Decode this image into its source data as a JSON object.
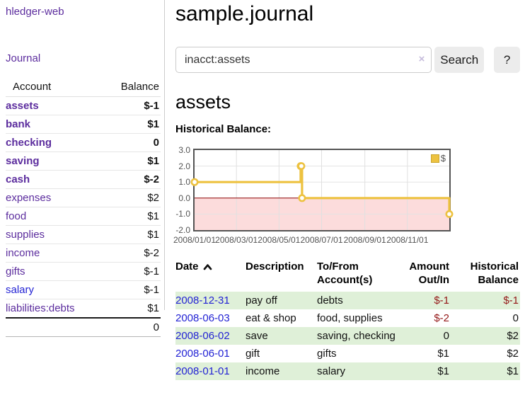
{
  "colors": {
    "link_purple": "#5c2d9e",
    "link_blue": "#2323d4",
    "negative_strong": "#941818",
    "negative_muted": "#c87c7c",
    "row_stripe_green": "#dff0d8",
    "chart_line_gold": "#edc240",
    "chart_border_gray": "#545454",
    "chart_negative_fill": "#fcdcdc",
    "chart_zero_line": "#8b0000"
  },
  "sidebar": {
    "brand": "hledger-web",
    "journal_link": "Journal",
    "accounts": {
      "headers": {
        "account": "Account",
        "balance": "Balance"
      },
      "rows": [
        {
          "account": "assets",
          "balance": "$-1",
          "indent": 1,
          "emph": true,
          "balance_class": "neg-strong",
          "link_variant": "purple"
        },
        {
          "account": "bank",
          "balance": "$1",
          "indent": 2,
          "emph": true,
          "balance_class": "",
          "link_variant": "purple"
        },
        {
          "account": "checking",
          "balance": "0",
          "indent": 3,
          "emph": true,
          "balance_class": "",
          "link_variant": "purple"
        },
        {
          "account": "saving",
          "balance": "$1",
          "indent": 3,
          "emph": true,
          "balance_class": "",
          "link_variant": "purple"
        },
        {
          "account": "cash",
          "balance": "$-2",
          "indent": 2,
          "emph": true,
          "balance_class": "neg-strong",
          "link_variant": "purple"
        },
        {
          "account": "expenses",
          "balance": "$2",
          "indent": 1,
          "emph": false,
          "balance_class": "",
          "link_variant": "purple"
        },
        {
          "account": "food",
          "balance": "$1",
          "indent": 2,
          "emph": false,
          "balance_class": "",
          "link_variant": "purple"
        },
        {
          "account": "supplies",
          "balance": "$1",
          "indent": 2,
          "emph": false,
          "balance_class": "",
          "link_variant": "purple"
        },
        {
          "account": "income",
          "balance": "$-2",
          "indent": 1,
          "emph": false,
          "balance_class": "neg-muted",
          "link_variant": "purple"
        },
        {
          "account": "gifts",
          "balance": "$-1",
          "indent": 2,
          "emph": false,
          "balance_class": "neg-muted",
          "link_variant": "purple"
        },
        {
          "account": "salary",
          "balance": "$-1",
          "indent": 2,
          "emph": false,
          "balance_class": "neg-muted",
          "link_variant": "blue"
        },
        {
          "account": "liabilities:debts",
          "balance": "$1",
          "indent": 1,
          "emph": false,
          "balance_class": "",
          "link_variant": "purple"
        }
      ],
      "total": "0"
    }
  },
  "header": {
    "title": "sample.journal"
  },
  "search": {
    "query": "inacct:assets",
    "clear_icon": "×",
    "search_label": "Search",
    "help_label": "?"
  },
  "account_page": {
    "heading": "assets",
    "chart_label": "Historical Balance:"
  },
  "chart_data": {
    "type": "line",
    "title": "Historical Balance:",
    "step": true,
    "x_range": [
      "2008-01-01",
      "2008-12-31"
    ],
    "ylim": [
      -2,
      3
    ],
    "y_ticks": [
      "3.0",
      "2.0",
      "1.0",
      "0.0",
      "-1.0",
      "-2.0"
    ],
    "x_ticks": [
      "2008/01/01",
      "2008/03/01",
      "2008/05/01",
      "2008/07/01",
      "2008/09/01",
      "2008/11/01"
    ],
    "grid": true,
    "legend_position": "top-right",
    "series": [
      {
        "name": "$",
        "color": "#edc240",
        "points": [
          [
            "2008-01-01",
            1
          ],
          [
            "2008-06-01",
            2
          ],
          [
            "2008-06-02",
            2
          ],
          [
            "2008-06-03",
            0
          ],
          [
            "2008-12-31",
            -1
          ]
        ]
      }
    ],
    "markings": {
      "zero_line_color": "#8b0000",
      "below_zero_fill": "#fcdcdc"
    }
  },
  "register_table": {
    "headers": {
      "date": "Date",
      "description": "Description",
      "accounts_line1": "To/From",
      "accounts_line2": "Account(s)",
      "amount_line1": "Amount",
      "amount_line2": "Out/In",
      "balance_line1": "Historical",
      "balance_line2": "Balance"
    },
    "rows": [
      {
        "date": "2008-12-31",
        "description": "pay off",
        "accounts": "debts",
        "amount": "$-1",
        "amount_negative": true,
        "balance": "$-1",
        "balance_negative": true,
        "shade": true
      },
      {
        "date": "2008-06-03",
        "description": "eat & shop",
        "accounts": "food, supplies",
        "amount": "$-2",
        "amount_negative": true,
        "balance": "0",
        "balance_negative": false,
        "shade": false
      },
      {
        "date": "2008-06-02",
        "description": "save",
        "accounts": "saving, checking",
        "amount": "0",
        "amount_negative": false,
        "balance": "$2",
        "balance_negative": false,
        "shade": true
      },
      {
        "date": "2008-06-01",
        "description": "gift",
        "accounts": "gifts",
        "amount": "$1",
        "amount_negative": false,
        "balance": "$2",
        "balance_negative": false,
        "shade": false
      },
      {
        "date": "2008-01-01",
        "description": "income",
        "accounts": "salary",
        "amount": "$1",
        "amount_negative": false,
        "balance": "$1",
        "balance_negative": false,
        "shade": true
      }
    ]
  }
}
